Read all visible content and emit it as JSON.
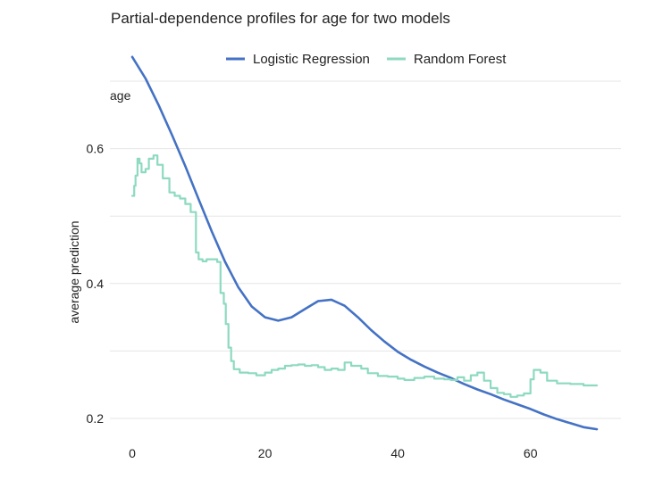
{
  "chart_data": {
    "type": "line",
    "title": "Partial-dependence profiles for age for two models",
    "facet_label": "age",
    "xlabel": "",
    "ylabel": "average prediction",
    "xlim": [
      0,
      70
    ],
    "ylim": [
      0.2,
      0.7
    ],
    "x_ticks": [
      0,
      20,
      40,
      60
    ],
    "y_ticks": [
      0.2,
      0.4,
      0.6
    ],
    "y_minor_grid": [
      0.3,
      0.5,
      0.7
    ],
    "grid": "horizontal",
    "legend_position": "top",
    "series": [
      {
        "name": "Logistic Regression",
        "color": "#4472c4",
        "shape": "smooth",
        "points": [
          [
            0,
            0.736
          ],
          [
            2,
            0.704
          ],
          [
            4,
            0.664
          ],
          [
            6,
            0.62
          ],
          [
            8,
            0.574
          ],
          [
            10,
            0.525
          ],
          [
            12,
            0.477
          ],
          [
            14,
            0.432
          ],
          [
            16,
            0.394
          ],
          [
            18,
            0.366
          ],
          [
            20,
            0.35
          ],
          [
            22,
            0.345
          ],
          [
            24,
            0.35
          ],
          [
            26,
            0.362
          ],
          [
            28,
            0.374
          ],
          [
            30,
            0.376
          ],
          [
            32,
            0.367
          ],
          [
            34,
            0.35
          ],
          [
            36,
            0.331
          ],
          [
            38,
            0.314
          ],
          [
            40,
            0.299
          ],
          [
            42,
            0.287
          ],
          [
            44,
            0.277
          ],
          [
            46,
            0.268
          ],
          [
            48,
            0.26
          ],
          [
            50,
            0.251
          ],
          [
            52,
            0.243
          ],
          [
            54,
            0.236
          ],
          [
            56,
            0.228
          ],
          [
            58,
            0.221
          ],
          [
            60,
            0.214
          ],
          [
            62,
            0.206
          ],
          [
            64,
            0.199
          ],
          [
            66,
            0.193
          ],
          [
            68,
            0.187
          ],
          [
            70,
            0.184
          ]
        ]
      },
      {
        "name": "Random Forest",
        "color": "#8ddac0",
        "shape": "step",
        "points": [
          [
            0,
            0.53
          ],
          [
            0.3,
            0.545
          ],
          [
            0.5,
            0.56
          ],
          [
            0.8,
            0.585
          ],
          [
            1.1,
            0.578
          ],
          [
            1.4,
            0.565
          ],
          [
            2.0,
            0.57
          ],
          [
            2.5,
            0.585
          ],
          [
            3.2,
            0.59
          ],
          [
            3.8,
            0.576
          ],
          [
            4.6,
            0.556
          ],
          [
            5.6,
            0.535
          ],
          [
            6.4,
            0.53
          ],
          [
            7.2,
            0.526
          ],
          [
            8.0,
            0.518
          ],
          [
            8.8,
            0.506
          ],
          [
            9.6,
            0.446
          ],
          [
            10.0,
            0.436
          ],
          [
            10.6,
            0.433
          ],
          [
            11.2,
            0.436
          ],
          [
            12.8,
            0.432
          ],
          [
            13.3,
            0.386
          ],
          [
            13.8,
            0.37
          ],
          [
            14.1,
            0.34
          ],
          [
            14.5,
            0.305
          ],
          [
            14.9,
            0.285
          ],
          [
            15.3,
            0.273
          ],
          [
            16.2,
            0.268
          ],
          [
            17.5,
            0.267
          ],
          [
            18.7,
            0.264
          ],
          [
            20.0,
            0.268
          ],
          [
            21.0,
            0.272
          ],
          [
            22.0,
            0.274
          ],
          [
            23.0,
            0.278
          ],
          [
            24.0,
            0.279
          ],
          [
            25.0,
            0.28
          ],
          [
            26.0,
            0.278
          ],
          [
            27.0,
            0.279
          ],
          [
            28.0,
            0.276
          ],
          [
            29.0,
            0.272
          ],
          [
            30.0,
            0.274
          ],
          [
            31.0,
            0.272
          ],
          [
            32.0,
            0.283
          ],
          [
            33.0,
            0.278
          ],
          [
            34.5,
            0.274
          ],
          [
            35.5,
            0.267
          ],
          [
            37.0,
            0.263
          ],
          [
            38.5,
            0.262
          ],
          [
            40.0,
            0.259
          ],
          [
            41.0,
            0.257
          ],
          [
            42.5,
            0.26
          ],
          [
            44.0,
            0.262
          ],
          [
            45.5,
            0.259
          ],
          [
            47.0,
            0.258
          ],
          [
            48.0,
            0.257
          ],
          [
            49.0,
            0.261
          ],
          [
            50.0,
            0.256
          ],
          [
            51.0,
            0.264
          ],
          [
            52.0,
            0.268
          ],
          [
            53.0,
            0.256
          ],
          [
            54.0,
            0.245
          ],
          [
            55.0,
            0.238
          ],
          [
            56.0,
            0.236
          ],
          [
            57.0,
            0.232
          ],
          [
            58.0,
            0.234
          ],
          [
            59.0,
            0.237
          ],
          [
            60.0,
            0.258
          ],
          [
            60.5,
            0.272
          ],
          [
            61.5,
            0.268
          ],
          [
            62.5,
            0.256
          ],
          [
            64.0,
            0.252
          ],
          [
            66.0,
            0.251
          ],
          [
            68.0,
            0.249
          ],
          [
            70.0,
            0.249
          ]
        ]
      }
    ]
  }
}
